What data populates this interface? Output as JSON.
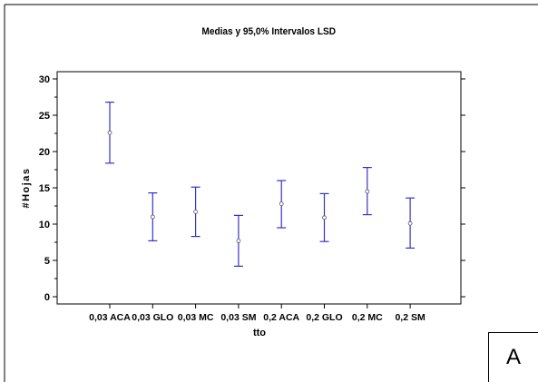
{
  "chart_data": {
    "type": "scatter",
    "title": "Medias y 95,0% Intervalos LSD",
    "xlabel": "tto",
    "ylabel": "#Hojas",
    "ylim": [
      0,
      30
    ],
    "yticks": [
      0,
      5,
      10,
      15,
      20,
      25,
      30
    ],
    "grid": false,
    "categories": [
      "0,03 ACA",
      "0,03 GLO",
      "0,03 MC",
      "0,03 SM",
      "0,2 ACA",
      "0,2 GLO",
      "0,2 MC",
      "0,2 SM"
    ],
    "means": [
      22.6,
      11.0,
      11.7,
      7.7,
      12.8,
      10.9,
      14.5,
      10.1
    ],
    "lower": [
      18.4,
      7.7,
      8.3,
      4.2,
      9.5,
      7.6,
      11.3,
      6.7
    ],
    "upper": [
      26.8,
      14.3,
      15.1,
      11.2,
      16.0,
      14.2,
      17.8,
      13.6
    ],
    "colors": {
      "interval": "#3333cc",
      "mean": "#555555",
      "axis": "#000000"
    }
  },
  "panel_label": "A"
}
